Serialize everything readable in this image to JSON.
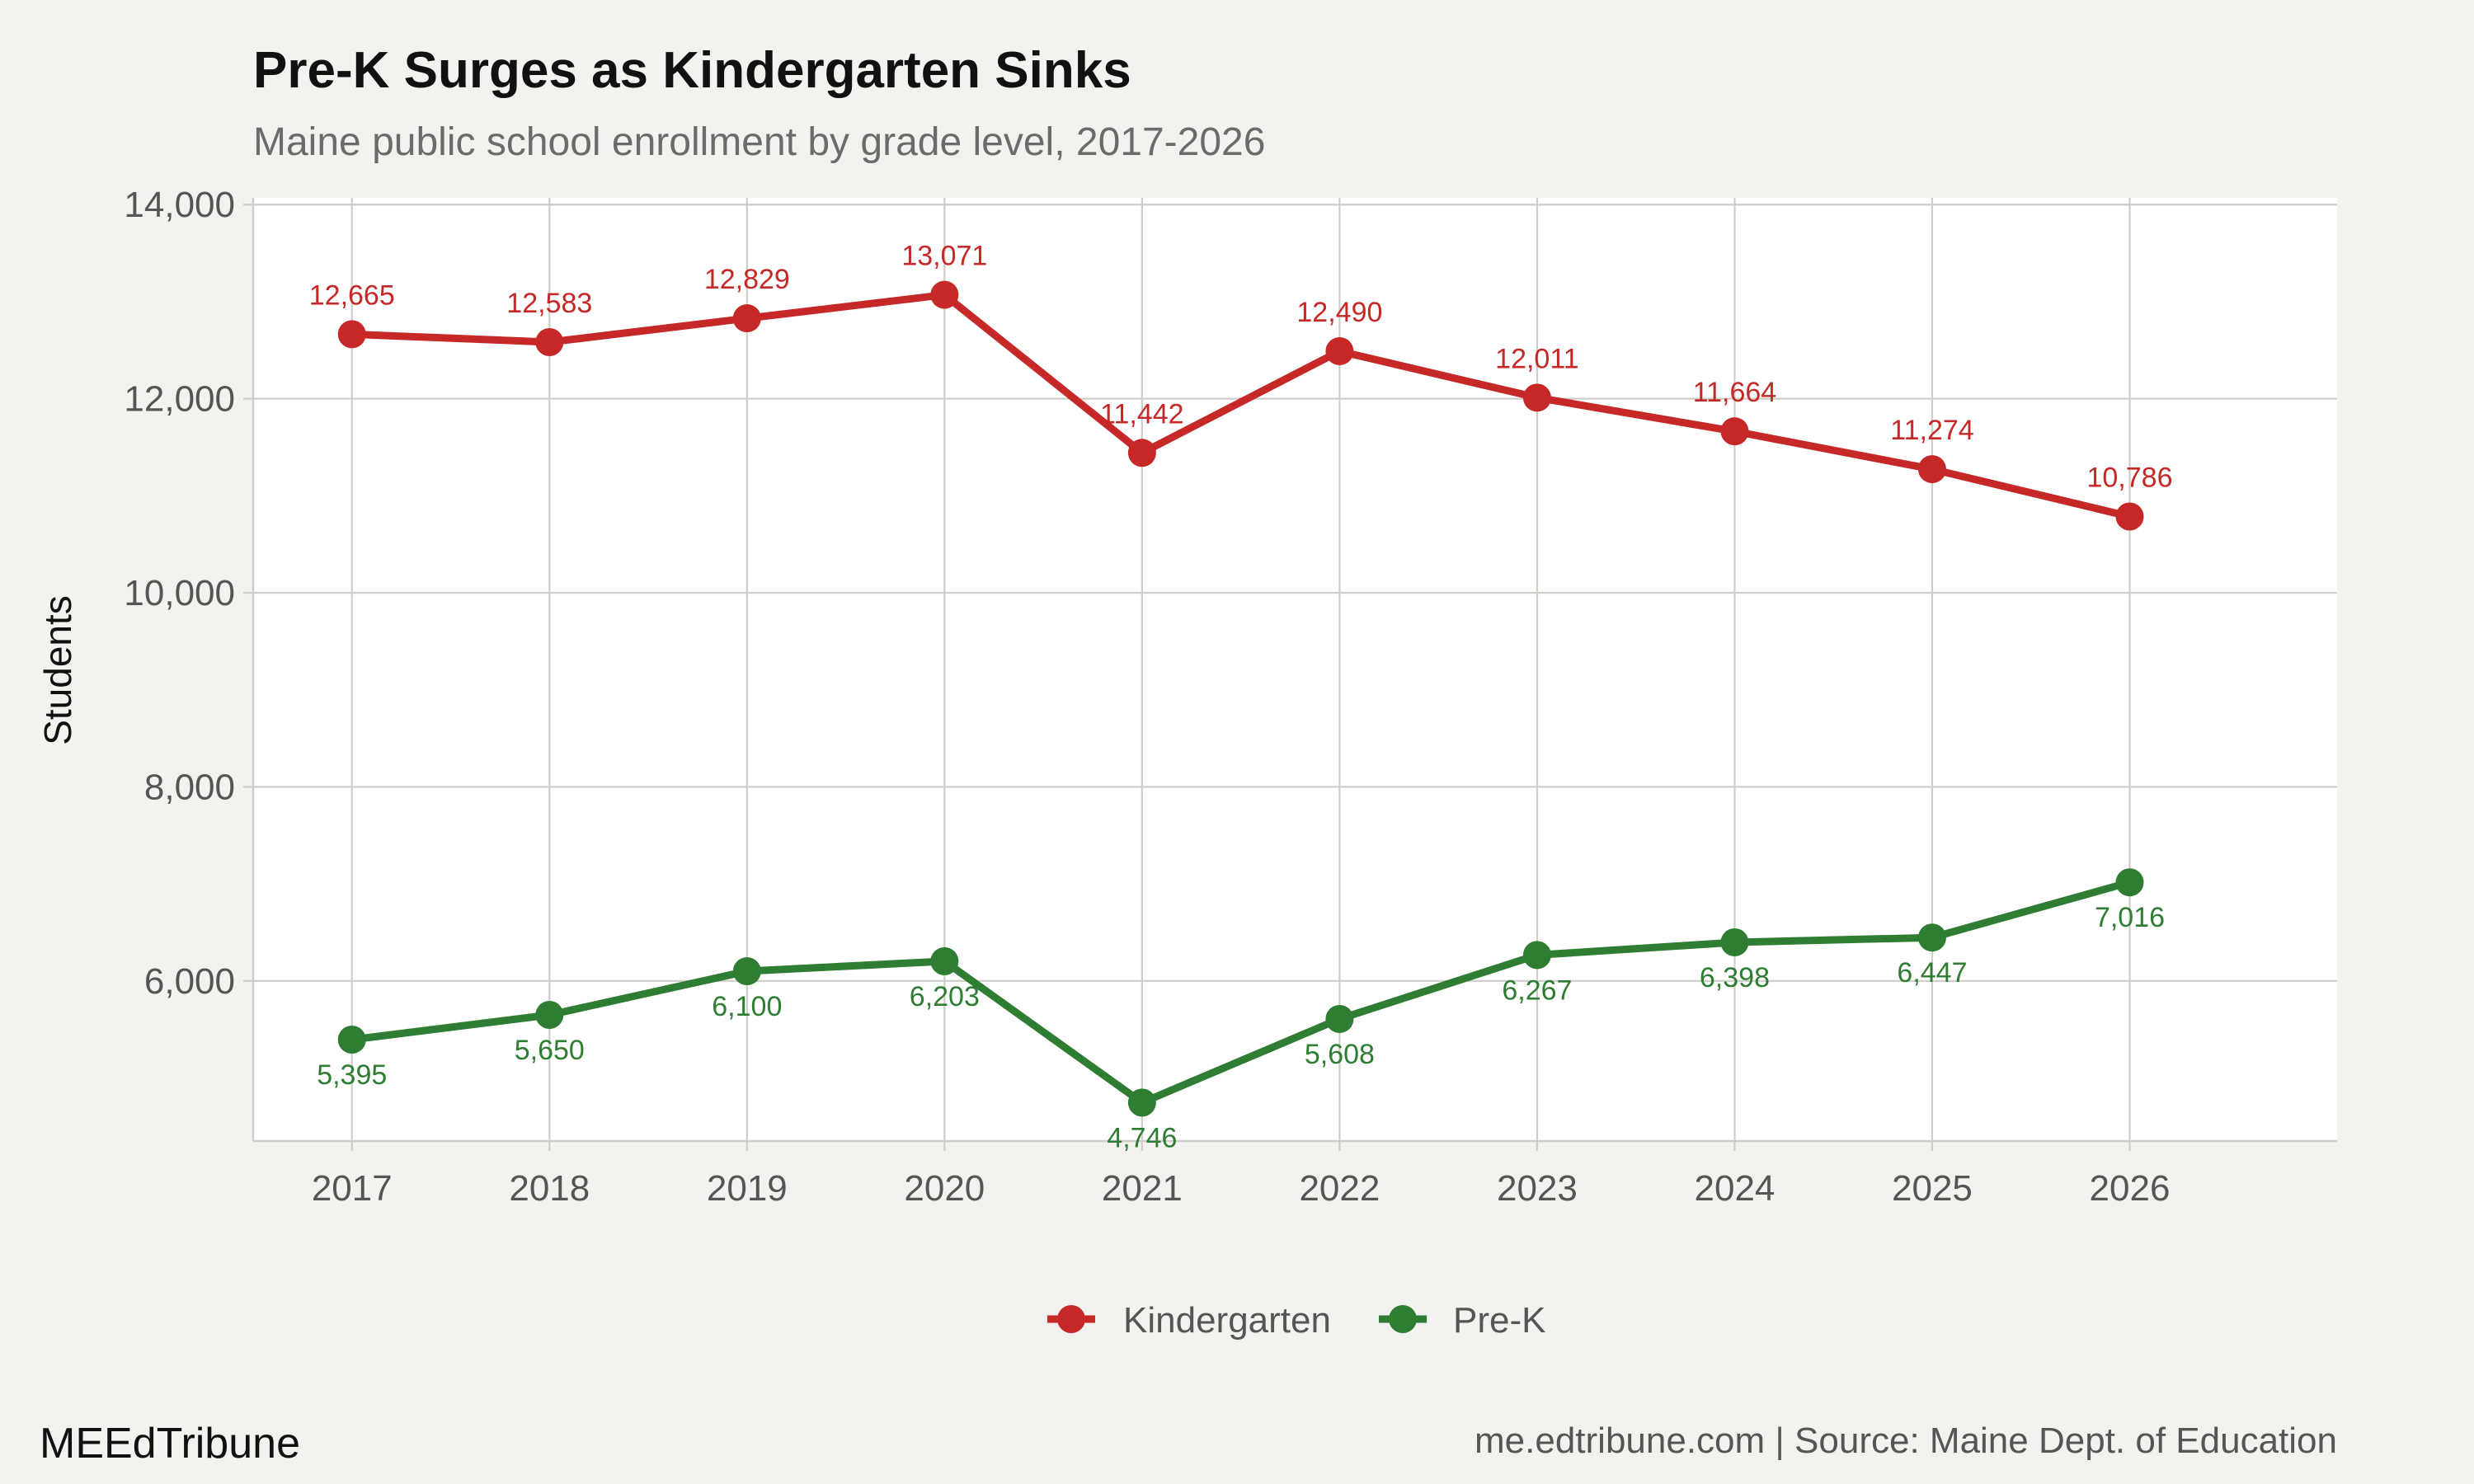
{
  "header": {
    "title": "Pre-K Surges as Kindergarten Sinks",
    "subtitle": "Maine public school enrollment by grade level, 2017-2026"
  },
  "footer": {
    "brand": "MEEdTribune",
    "source": "me.edtribune.com | Source: Maine Dept. of Education"
  },
  "colors": {
    "background": "#f4f2ee",
    "plot_background": "#ffffff",
    "grid": "#cfcdc8",
    "kindergarten": "#c62828",
    "prek": "#2e7d32"
  },
  "chart_data": {
    "type": "line",
    "title": "Pre-K Surges as Kindergarten Sinks",
    "subtitle": "Maine public school enrollment by grade level, 2017-2026",
    "xlabel": "",
    "ylabel": "Students",
    "x": [
      "2017",
      "2018",
      "2019",
      "2020",
      "2021",
      "2022",
      "2023",
      "2024",
      "2025",
      "2026"
    ],
    "xlim": [
      2016.5,
      2027.05
    ],
    "ylim": [
      4350,
      14070
    ],
    "yticks": [
      6000,
      8000,
      10000,
      12000,
      14000
    ],
    "ytick_labels": [
      "6,000",
      "8,000",
      "10,000",
      "12,000",
      "14,000"
    ],
    "grid": true,
    "legend_position": "bottom",
    "series": [
      {
        "name": "Kindergarten",
        "color": "#c62828",
        "label_position": "above",
        "values": [
          12665,
          12583,
          12829,
          13071,
          11442,
          12490,
          12011,
          11664,
          11274,
          10786
        ],
        "labels": [
          "12,665",
          "12,583",
          "12,829",
          "13,071",
          "11,442",
          "12,490",
          "12,011",
          "11,664",
          "11,274",
          "10,786"
        ]
      },
      {
        "name": "Pre-K",
        "color": "#2e7d32",
        "label_position": "below",
        "values": [
          5395,
          5650,
          6100,
          6203,
          4746,
          5608,
          6267,
          6398,
          6447,
          7016
        ],
        "labels": [
          "5,395",
          "5,650",
          "6,100",
          "6,203",
          "4,746",
          "5,608",
          "6,267",
          "6,398",
          "6,447",
          "7,016"
        ]
      }
    ]
  }
}
